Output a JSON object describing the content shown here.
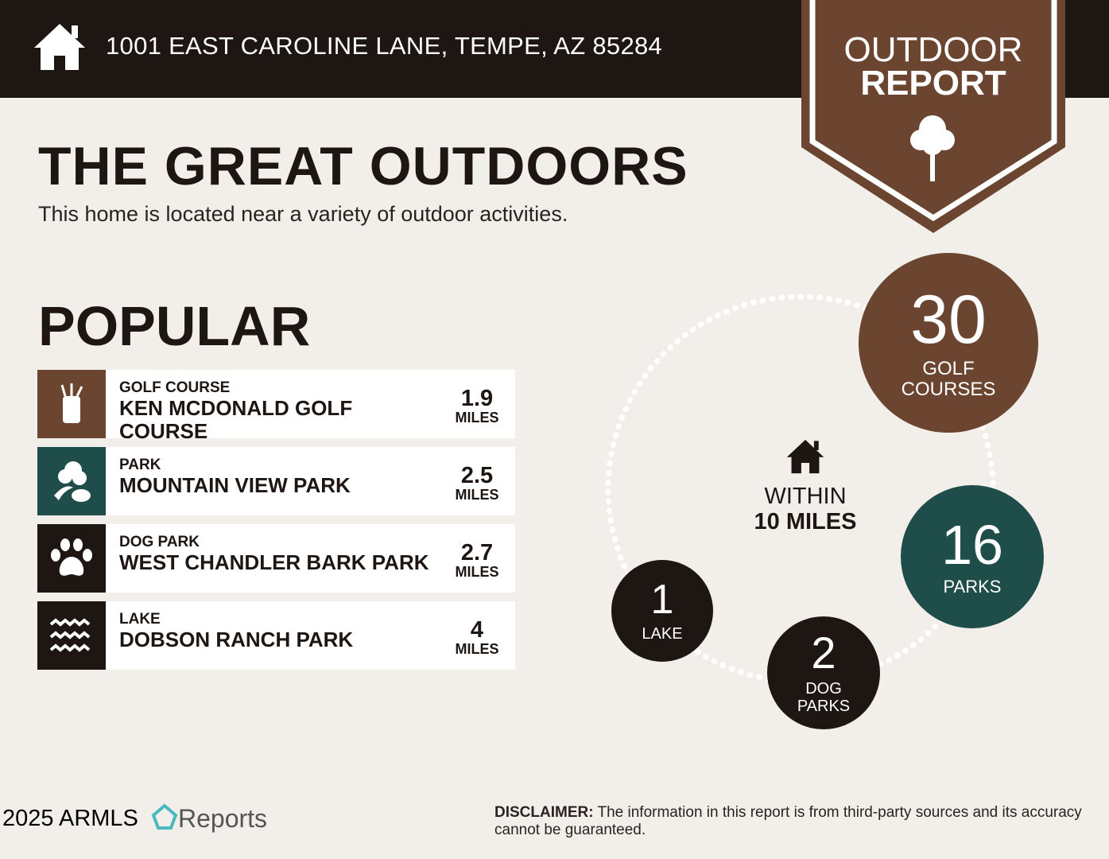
{
  "header": {
    "address": "1001 EAST CAROLINE LANE, TEMPE, AZ 85284",
    "badge_line1": "OUTDOOR",
    "badge_line2": "REPORT"
  },
  "title": "THE GREAT OUTDOORS",
  "subtitle": "This home is located near a variety of outdoor activities.",
  "popular_heading": "POPULAR",
  "popular": [
    {
      "category": "GOLF COURSE",
      "name": "KEN MCDONALD GOLF COURSE",
      "distance": "1.9",
      "unit": "MILES",
      "icon": "golf-bag-icon",
      "color": "#6b4530"
    },
    {
      "category": "PARK",
      "name": "MOUNTAIN VIEW PARK",
      "distance": "2.5",
      "unit": "MILES",
      "icon": "park-tree-icon",
      "color": "#1f4d4a"
    },
    {
      "category": "DOG PARK",
      "name": "WEST CHANDLER BARK PARK",
      "distance": "2.7",
      "unit": "MILES",
      "icon": "paw-icon",
      "color": "#1e1613"
    },
    {
      "category": "LAKE",
      "name": "DOBSON RANCH PARK",
      "distance": "4",
      "unit": "MILES",
      "icon": "waves-icon",
      "color": "#1e1613"
    }
  ],
  "within": {
    "line1": "WITHIN",
    "line2": "10 MILES"
  },
  "counts": [
    {
      "value": "30",
      "label1": "GOLF",
      "label2": "COURSES",
      "color": "#6b4530"
    },
    {
      "value": "16",
      "label1": "PARKS",
      "label2": "",
      "color": "#1f4d4a"
    },
    {
      "value": "2",
      "label1": "DOG",
      "label2": "PARKS",
      "color": "#1e1613"
    },
    {
      "value": "1",
      "label1": "LAKE",
      "label2": "",
      "color": "#1e1613"
    }
  ],
  "footer": {
    "copyright": "2025 ARMLS",
    "logo": "Reports",
    "disclaimer_label": "DISCLAIMER:",
    "disclaimer": " The information in this report is from third-party sources and its accuracy cannot be guaranteed."
  }
}
